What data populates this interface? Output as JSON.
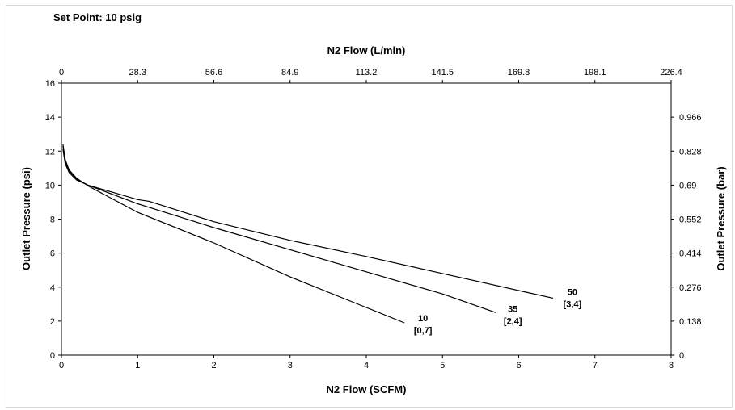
{
  "chart_data": {
    "type": "line",
    "title": "Set Point: 10 psig",
    "xlabel": "N2 Flow (SCFM)",
    "ylabel": "Outlet Pressure (psi)",
    "x2label": "N2 Flow (L/min)",
    "y2label": "Outlet Pressure (bar)",
    "xlim": [
      0,
      8
    ],
    "ylim": [
      0,
      16
    ],
    "x_ticks": [
      "0",
      "1",
      "2",
      "3",
      "4",
      "5",
      "6",
      "7",
      "8"
    ],
    "y_ticks": [
      "0",
      "2",
      "4",
      "6",
      "8",
      "10",
      "12",
      "14",
      "16"
    ],
    "x2_ticks": [
      "0",
      "28.3",
      "56.6",
      "84.9",
      "113.2",
      "141.5",
      "169.8",
      "198.1",
      "226.4"
    ],
    "y2_ticks": [
      "0",
      "0.138",
      "0.276",
      "0.414",
      "0.552",
      "0.69",
      "0.828",
      "0.966"
    ],
    "grid": false,
    "legend": "none",
    "series": [
      {
        "label": "10",
        "sublabel": "[0,7]",
        "x": [
          0.02,
          0.05,
          0.1,
          0.2,
          0.35,
          1.0,
          2.0,
          3.0,
          4.0,
          4.5
        ],
        "y": [
          12.4,
          11.5,
          10.9,
          10.4,
          9.95,
          8.4,
          6.6,
          4.6,
          2.8,
          1.9
        ]
      },
      {
        "label": "35",
        "sublabel": "[2,4]",
        "x": [
          0.02,
          0.05,
          0.1,
          0.2,
          0.35,
          1.0,
          2.0,
          3.0,
          4.0,
          5.0,
          5.7
        ],
        "y": [
          12.3,
          11.4,
          10.85,
          10.35,
          10.0,
          8.9,
          7.5,
          6.2,
          4.9,
          3.6,
          2.5
        ]
      },
      {
        "label": "50",
        "sublabel": "[3,4]",
        "x": [
          0.02,
          0.05,
          0.1,
          0.2,
          0.35,
          1.0,
          1.15,
          2.0,
          3.0,
          4.0,
          5.0,
          6.0,
          6.45
        ],
        "y": [
          12.1,
          11.25,
          10.75,
          10.3,
          10.0,
          9.15,
          9.05,
          7.85,
          6.75,
          5.8,
          4.8,
          3.8,
          3.35
        ]
      }
    ]
  }
}
